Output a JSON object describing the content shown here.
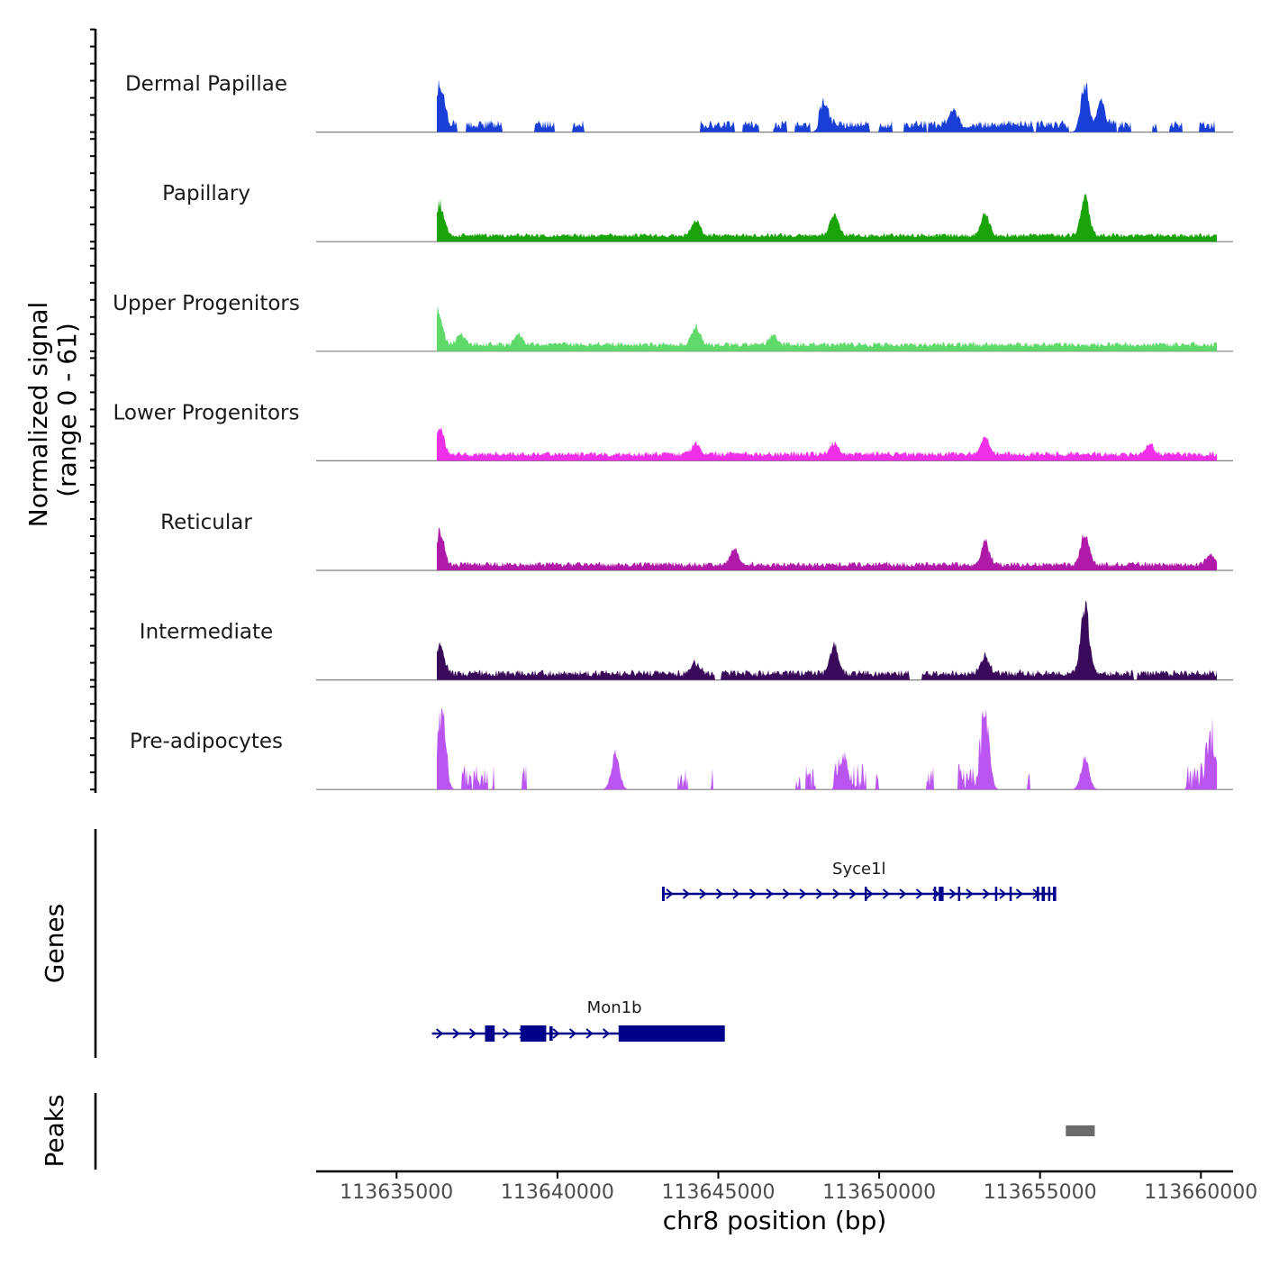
{
  "chart_data": {
    "type": "area",
    "genome_region": "chr8",
    "xlim": [
      113632500,
      113661000
    ],
    "xlabel": "chr8 position (bp)",
    "x_ticks": [
      113635000,
      113640000,
      113645000,
      113650000,
      113655000,
      113660000
    ],
    "x_tick_labels": [
      "113635000",
      "113640000",
      "113645000",
      "113650000",
      "113655000",
      "113660000"
    ],
    "signal": {
      "ylabel_line1": "Normalized signal",
      "ylabel_line2": "(range 0 - 61)",
      "ylim": [
        0,
        61
      ],
      "x_range": [
        113636250,
        113660500
      ],
      "peak_positions": [
        113636350,
        113644300,
        113648600,
        113653300,
        113656400,
        113660300
      ],
      "tracks": [
        {
          "name": "Dermal Papillae",
          "color": "#1a3fd6",
          "base": 4,
          "noise": 10,
          "sparse": 0.45,
          "peaks": [
            [
              113636350,
              52
            ],
            [
              113648300,
              32
            ],
            [
              113656400,
              62
            ],
            [
              113656900,
              40
            ],
            [
              113652300,
              20
            ]
          ]
        },
        {
          "name": "Papillary",
          "color": "#1aa40a",
          "base": 5,
          "noise": 5,
          "sparse": 0,
          "peaks": [
            [
              113636350,
              38
            ],
            [
              113644300,
              18
            ],
            [
              113648600,
              26
            ],
            [
              113653300,
              30
            ],
            [
              113656400,
              52
            ]
          ]
        },
        {
          "name": "Upper Progenitors",
          "color": "#5ed96a",
          "base": 5,
          "noise": 6,
          "sparse": 0,
          "peaks": [
            [
              113636300,
              40
            ],
            [
              113637000,
              14
            ],
            [
              113644300,
              22
            ],
            [
              113638800,
              12
            ],
            [
              113646700,
              12
            ]
          ]
        },
        {
          "name": "Lower Progenitors",
          "color": "#f030e8",
          "base": 5,
          "noise": 6,
          "sparse": 0,
          "peaks": [
            [
              113636350,
              32
            ],
            [
              113653300,
              22
            ],
            [
              113648600,
              14
            ],
            [
              113644300,
              12
            ],
            [
              113658400,
              12
            ]
          ]
        },
        {
          "name": "Reticular",
          "color": "#b01aa8",
          "base": 4,
          "noise": 6,
          "sparse": 0,
          "peaks": [
            [
              113636350,
              40
            ],
            [
              113645500,
              20
            ],
            [
              113653300,
              30
            ],
            [
              113656400,
              38
            ],
            [
              113660300,
              14
            ]
          ]
        },
        {
          "name": "Intermediate",
          "color": "#3a0a5a",
          "base": 4,
          "noise": 8,
          "sparse": 0.08,
          "peaks": [
            [
              113636350,
              42
            ],
            [
              113648600,
              36
            ],
            [
              113653300,
              22
            ],
            [
              113656400,
              88
            ],
            [
              113644300,
              14
            ]
          ]
        },
        {
          "name": "Pre-adipocytes",
          "color": "#bb55f2",
          "base": 0,
          "noise": 30,
          "sparse": 0.72,
          "peaks": [
            [
              113636400,
              78
            ],
            [
              113653300,
              90
            ],
            [
              113660300,
              58
            ],
            [
              113641800,
              44
            ],
            [
              113648900,
              44
            ],
            [
              113656400,
              40
            ]
          ]
        }
      ]
    },
    "genes": {
      "label": "Genes",
      "color": "#00008b",
      "items": [
        {
          "name": "Syce1l",
          "strand": "+",
          "start": 113643250,
          "end": 113655500,
          "exons": [
            [
              113643250,
              113643330
            ],
            [
              113649550,
              113649600
            ],
            [
              113651700,
              113651750
            ],
            [
              113651850,
              113652000
            ],
            [
              113652450,
              113652500
            ],
            [
              113653600,
              113653650
            ],
            [
              113654050,
              113654100
            ],
            [
              113654900,
              113654960
            ],
            [
              113655050,
              113655150
            ],
            [
              113655250,
              113655300
            ],
            [
              113655400,
              113655500
            ]
          ]
        },
        {
          "name": "Mon1b",
          "strand": "+",
          "start": 113636100,
          "end": 113645200,
          "exons": [
            [
              113637750,
              113638050
            ],
            [
              113638850,
              113639650
            ],
            [
              113639750,
              113639850
            ],
            [
              113641900,
              113645200
            ]
          ]
        }
      ]
    },
    "peaks": {
      "label": "Peaks",
      "color": "#6b6b6b",
      "regions": [
        [
          113655800,
          113656700
        ]
      ]
    }
  }
}
